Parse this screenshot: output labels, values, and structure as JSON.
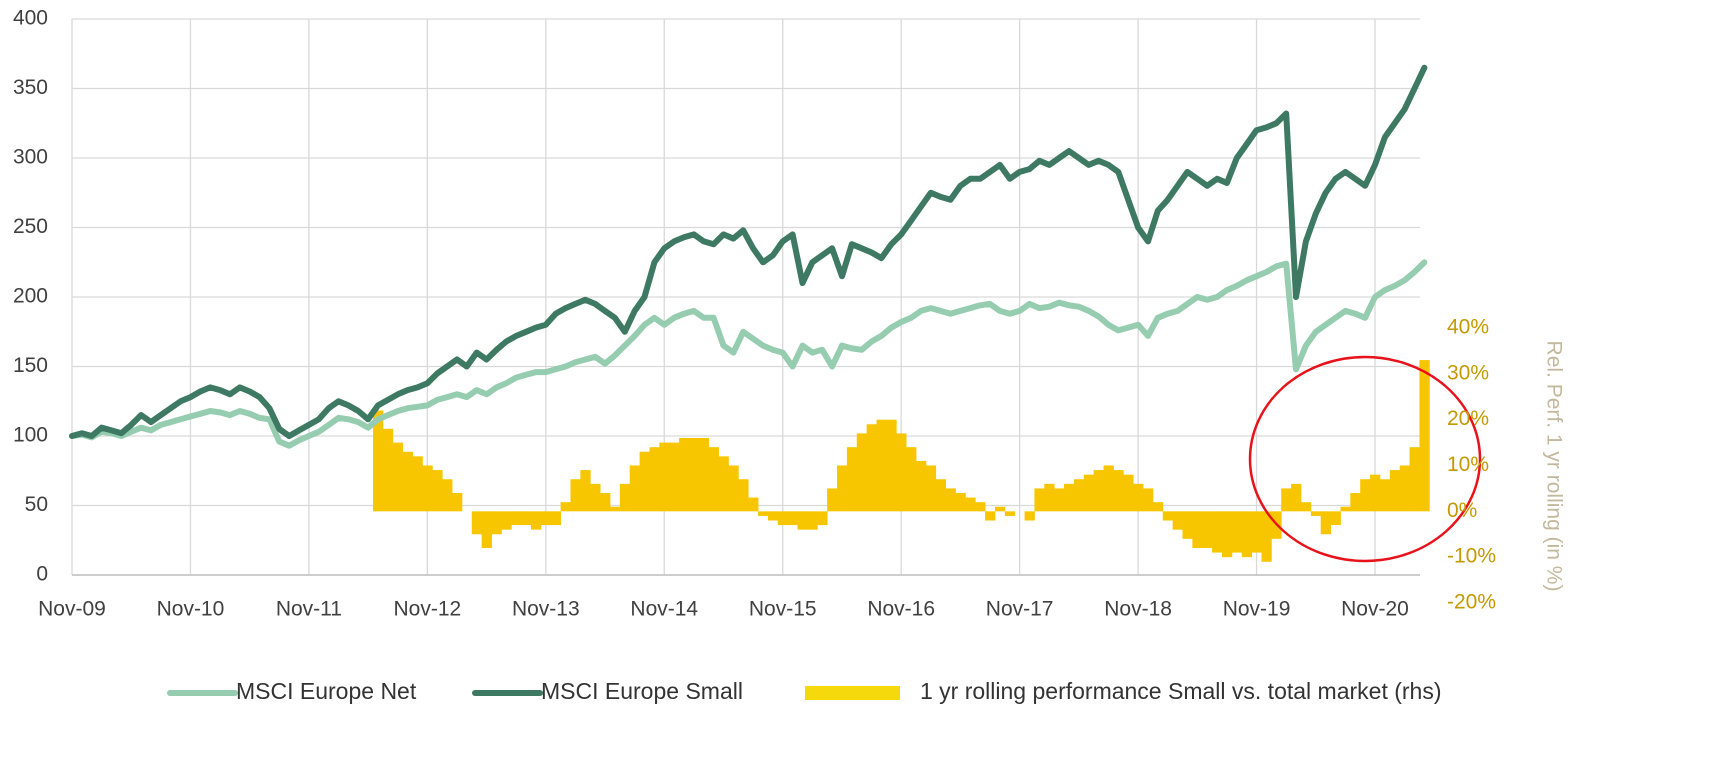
{
  "chart_data": {
    "type": "line",
    "categories": [
      "Nov-09",
      null,
      null,
      null,
      null,
      null,
      null,
      null,
      null,
      null,
      null,
      null,
      "Nov-10",
      null,
      null,
      null,
      null,
      null,
      null,
      null,
      null,
      null,
      null,
      null,
      "Nov-11",
      null,
      null,
      null,
      null,
      null,
      null,
      null,
      null,
      null,
      null,
      null,
      "Nov-12",
      null,
      null,
      null,
      null,
      null,
      null,
      null,
      null,
      null,
      null,
      null,
      "Nov-13",
      null,
      null,
      null,
      null,
      null,
      null,
      null,
      null,
      null,
      null,
      null,
      "Nov-14",
      null,
      null,
      null,
      null,
      null,
      null,
      null,
      null,
      null,
      null,
      null,
      "Nov-15",
      null,
      null,
      null,
      null,
      null,
      null,
      null,
      null,
      null,
      null,
      null,
      "Nov-16",
      null,
      null,
      null,
      null,
      null,
      null,
      null,
      null,
      null,
      null,
      null,
      "Nov-17",
      null,
      null,
      null,
      null,
      null,
      null,
      null,
      null,
      null,
      null,
      null,
      "Nov-18",
      null,
      null,
      null,
      null,
      null,
      null,
      null,
      null,
      null,
      null,
      null,
      "Nov-19",
      null,
      null,
      null,
      null,
      null,
      null,
      null,
      null,
      null,
      null,
      null,
      "Nov-20",
      null,
      null,
      null,
      null,
      null
    ],
    "series": [
      {
        "name": "MSCI Europe Net",
        "color": "#96cdb0",
        "values": [
          100,
          101,
          99,
          103,
          102,
          100,
          103,
          106,
          104,
          108,
          110,
          112,
          114,
          116,
          118,
          117,
          115,
          118,
          116,
          113,
          112,
          96,
          93,
          97,
          100,
          103,
          108,
          113,
          112,
          110,
          106,
          112,
          115,
          118,
          120,
          121,
          122,
          126,
          128,
          130,
          128,
          133,
          130,
          135,
          138,
          142,
          144,
          146,
          146,
          148,
          150,
          153,
          155,
          157,
          152,
          158,
          165,
          172,
          180,
          185,
          180,
          185,
          188,
          190,
          185,
          185,
          165,
          160,
          175,
          170,
          165,
          162,
          160,
          150,
          165,
          160,
          162,
          150,
          165,
          163,
          162,
          168,
          172,
          178,
          182,
          185,
          190,
          192,
          190,
          188,
          190,
          192,
          194,
          195,
          190,
          188,
          190,
          195,
          192,
          193,
          196,
          194,
          193,
          190,
          186,
          180,
          176,
          178,
          180,
          172,
          185,
          188,
          190,
          195,
          200,
          198,
          200,
          205,
          208,
          212,
          215,
          218,
          222,
          224,
          148,
          165,
          175,
          180,
          185,
          190,
          188,
          185,
          200,
          205,
          208,
          212,
          218,
          225
        ]
      },
      {
        "name": "MSCI Europe Small",
        "color": "#3e7a63",
        "values": [
          100,
          102,
          100,
          106,
          104,
          102,
          108,
          115,
          110,
          115,
          120,
          125,
          128,
          132,
          135,
          133,
          130,
          135,
          132,
          128,
          120,
          105,
          100,
          104,
          108,
          112,
          120,
          125,
          122,
          118,
          112,
          122,
          126,
          130,
          133,
          135,
          138,
          145,
          150,
          155,
          150,
          160,
          155,
          162,
          168,
          172,
          175,
          178,
          180,
          188,
          192,
          195,
          198,
          195,
          190,
          185,
          175,
          190,
          200,
          225,
          235,
          240,
          243,
          245,
          240,
          238,
          245,
          242,
          248,
          235,
          225,
          230,
          240,
          245,
          210,
          225,
          230,
          235,
          215,
          238,
          235,
          232,
          228,
          238,
          245,
          255,
          265,
          275,
          272,
          270,
          280,
          285,
          285,
          290,
          295,
          285,
          290,
          292,
          298,
          295,
          300,
          305,
          300,
          295,
          298,
          295,
          290,
          270,
          250,
          240,
          262,
          270,
          280,
          290,
          285,
          280,
          285,
          282,
          300,
          310,
          320,
          322,
          325,
          332,
          200,
          240,
          260,
          275,
          285,
          290,
          285,
          280,
          295,
          315,
          325,
          335,
          350,
          365
        ]
      },
      {
        "name": "1 yr rolling performance Small vs. total market (rhs)",
        "color": "#f7c600",
        "type": "bar",
        "axis": "y2",
        "values": [
          null,
          null,
          null,
          null,
          null,
          null,
          null,
          null,
          null,
          null,
          null,
          null,
          null,
          null,
          null,
          null,
          null,
          null,
          null,
          null,
          null,
          null,
          null,
          null,
          null,
          null,
          null,
          null,
          null,
          null,
          null,
          22,
          18,
          15,
          13,
          12,
          10,
          9,
          7,
          4,
          0,
          -5,
          -8,
          -5,
          -4,
          -3,
          -3,
          -4,
          -3,
          -3,
          2,
          7,
          9,
          6,
          4,
          1,
          6,
          10,
          13,
          14,
          15,
          15,
          16,
          16,
          16,
          14,
          12,
          10,
          7,
          3,
          -1,
          -2,
          -3,
          -3,
          -4,
          -4,
          -3,
          5,
          10,
          14,
          17,
          19,
          20,
          20,
          17,
          14,
          11,
          10,
          7,
          5,
          4,
          3,
          2,
          -2,
          1,
          -1,
          0,
          -2,
          5,
          6,
          5,
          6,
          7,
          8,
          9,
          10,
          9,
          8,
          6,
          5,
          2,
          -2,
          -4,
          -6,
          -8,
          -8,
          -9,
          -10,
          -9,
          -10,
          -9,
          -11,
          -6,
          5,
          6,
          2,
          -1,
          -5,
          -3,
          1,
          4,
          7,
          8,
          7,
          9,
          10,
          14,
          33
        ]
      }
    ],
    "ylim": [
      0,
      400
    ],
    "yticks": [
      0,
      50,
      100,
      150,
      200,
      250,
      300,
      350,
      400
    ],
    "y2lim": [
      -20,
      40
    ],
    "y2ticks": [
      {
        "value": -20,
        "label": "-20%"
      },
      {
        "value": -10,
        "label": "-10%"
      },
      {
        "value": 0,
        "label": "0%"
      },
      {
        "value": 10,
        "label": "10%"
      },
      {
        "value": 20,
        "label": "20%"
      },
      {
        "value": 30,
        "label": "30%"
      },
      {
        "value": 40,
        "label": "40%"
      }
    ],
    "y2label": "Rel. Perf. 1 yr rolling (in %)",
    "grid": true
  }
}
